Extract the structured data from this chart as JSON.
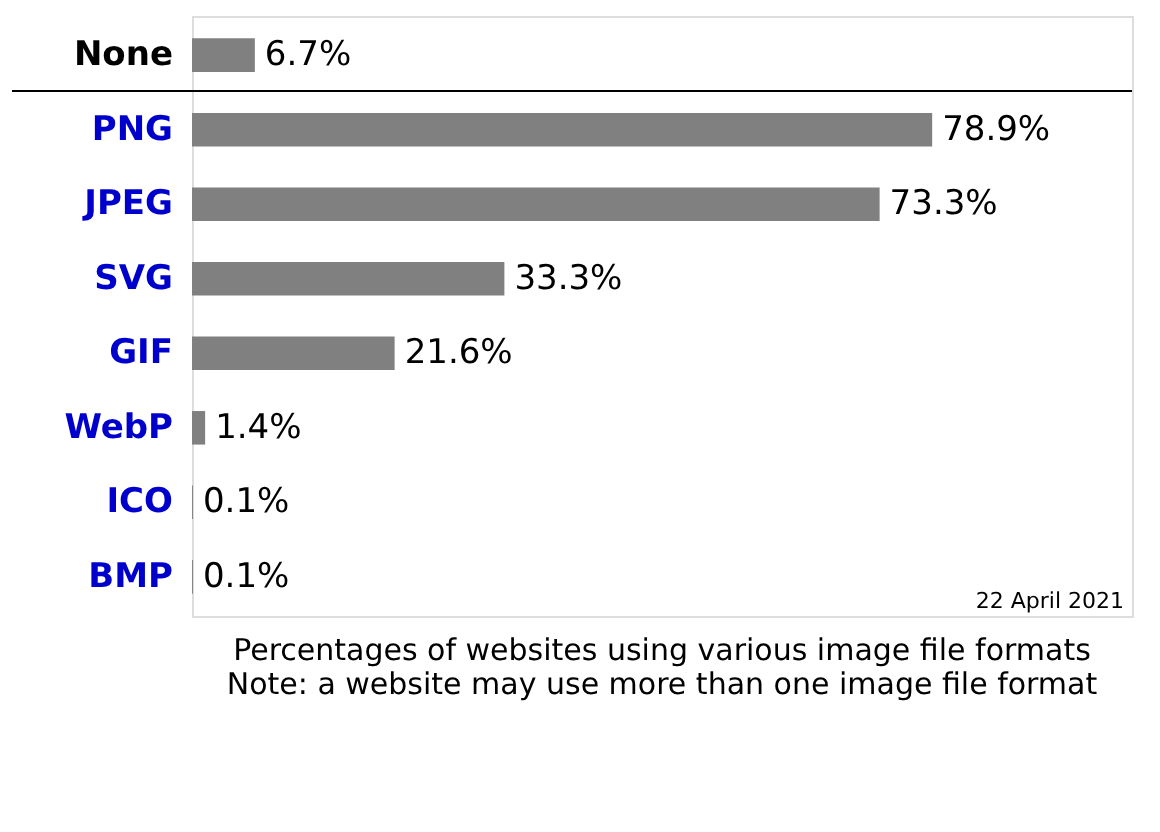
{
  "chart_data": {
    "type": "bar",
    "orientation": "horizontal",
    "title": "Percentages of websites using various image file formats\nNote: a website may use more than one image file format",
    "categories": [
      "None",
      "PNG",
      "JPEG",
      "SVG",
      "GIF",
      "WebP",
      "ICO",
      "BMP"
    ],
    "values": [
      6.7,
      78.9,
      73.3,
      33.3,
      21.6,
      1.4,
      0.1,
      0.1
    ],
    "color": "#808080",
    "data_labels": true,
    "value_labels": [
      "6.7%",
      "78.9%",
      "73.3%",
      "33.3%",
      "21.6%",
      "1.4%",
      "0.1%",
      "0.1%"
    ],
    "annotations": [
      "22 April 2021"
    ],
    "grid": false
  }
}
